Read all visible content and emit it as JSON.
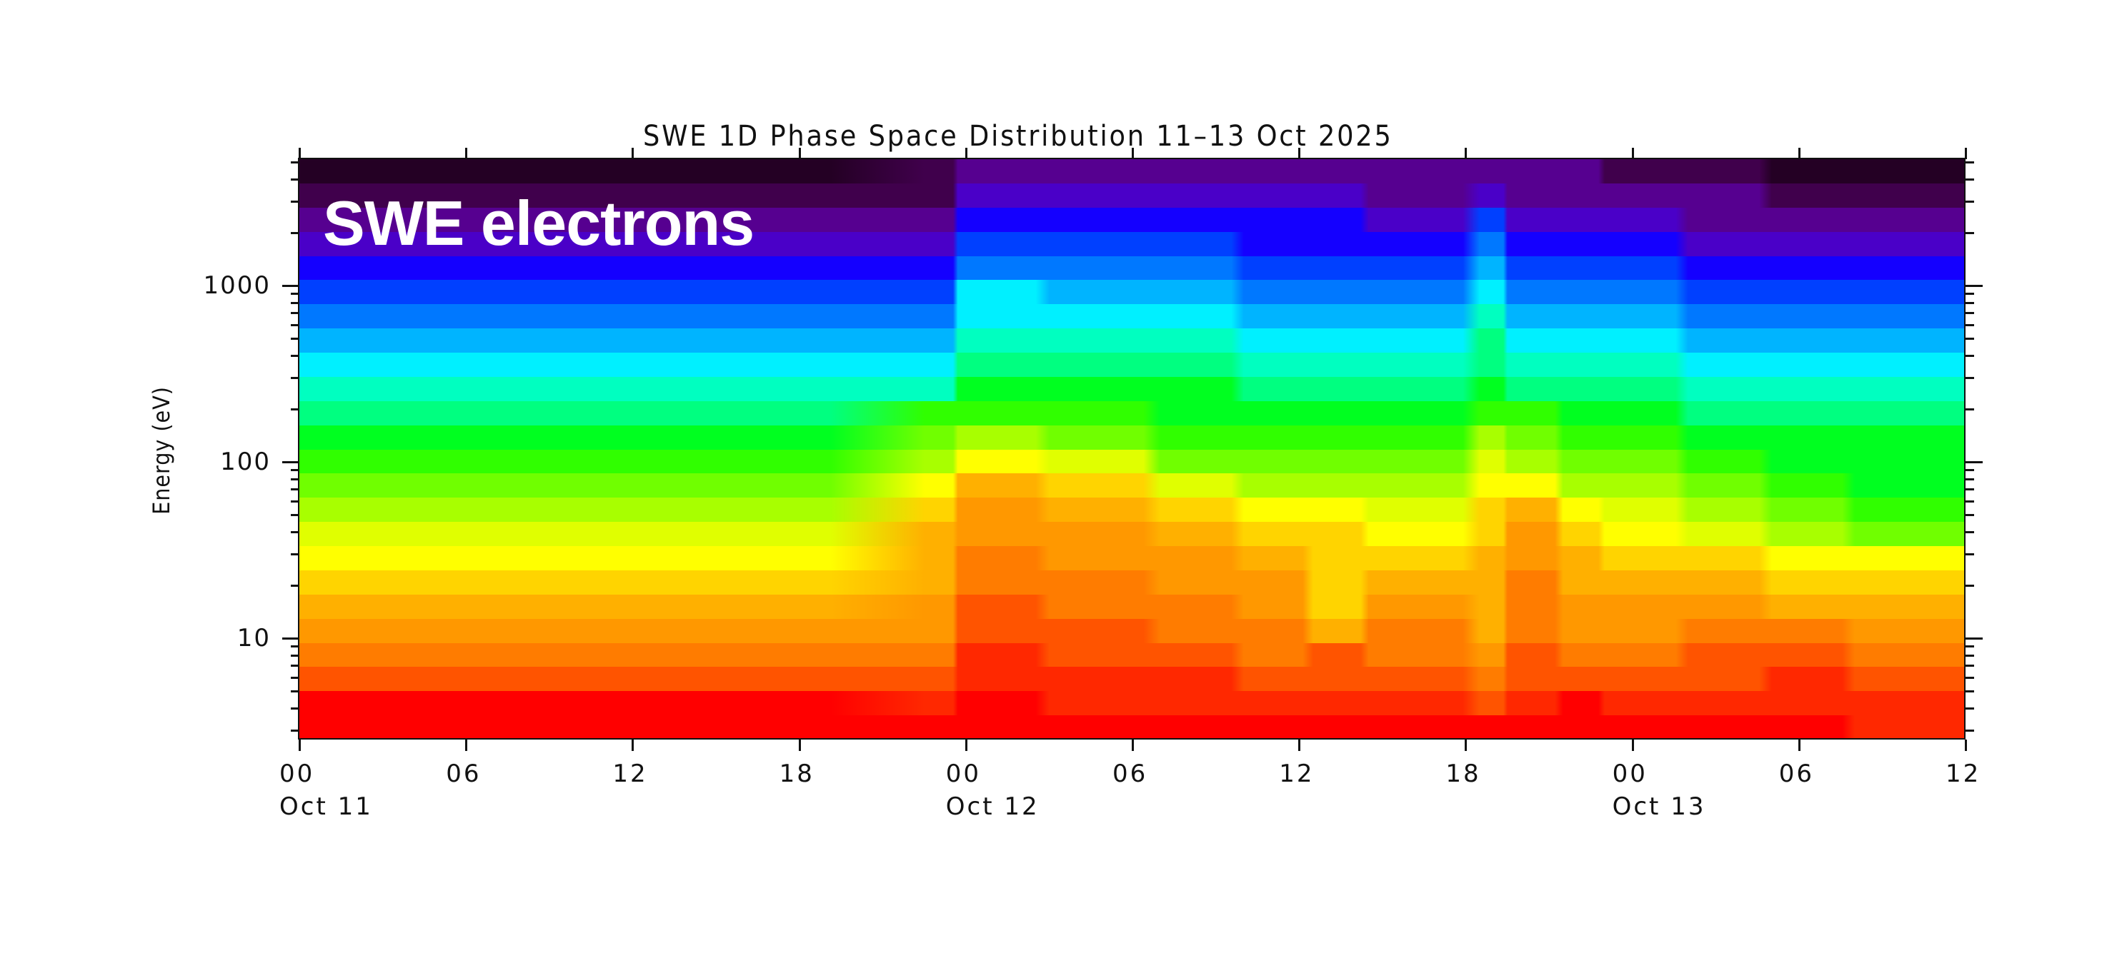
{
  "title": "SWE 1D Phase Space Distribution 11–13 Oct 2025",
  "overlay_label": "SWE electrons",
  "y_axis_title": "Energy (eV)",
  "chart_data": {
    "type": "heatmap",
    "title": "SWE 1D Phase Space Distribution 11–13 Oct 2025",
    "annotation": "SWE electrons",
    "xlabel": "",
    "ylabel": "Energy (eV)",
    "yscale": "log",
    "ylim": [
      2.9,
      5200
    ],
    "x_range_hours": [
      0,
      60
    ],
    "x_ticks": [
      {
        "h": 0,
        "label": "00",
        "date": "Oct 11"
      },
      {
        "h": 6,
        "label": "06",
        "date": ""
      },
      {
        "h": 12,
        "label": "12",
        "date": ""
      },
      {
        "h": 18,
        "label": "18",
        "date": ""
      },
      {
        "h": 24,
        "label": "00",
        "date": "Oct 12"
      },
      {
        "h": 30,
        "label": "06",
        "date": ""
      },
      {
        "h": 36,
        "label": "12",
        "date": ""
      },
      {
        "h": 42,
        "label": "18",
        "date": ""
      },
      {
        "h": 48,
        "label": "00",
        "date": "Oct 13"
      },
      {
        "h": 54,
        "label": "06",
        "date": ""
      },
      {
        "h": 60,
        "label": "12",
        "date": ""
      }
    ],
    "y_ticks": [
      {
        "value": 10,
        "label": "10"
      },
      {
        "value": 100,
        "label": "100"
      },
      {
        "value": 1000,
        "label": "1000"
      }
    ],
    "colormap": [
      "#240024",
      "#40004c",
      "#560090",
      "#4a00c8",
      "#1400ff",
      "#0040ff",
      "#0078ff",
      "#00b4ff",
      "#00f0ff",
      "#00ffc0",
      "#00ff80",
      "#00ff20",
      "#30ff00",
      "#70ff00",
      "#a8ff00",
      "#e0ff00",
      "#ffff00",
      "#ffd400",
      "#ffb000",
      "#ff9800",
      "#ff7c00",
      "#ff5400",
      "#ff2800",
      "#ff0000"
    ],
    "energy_bands_count": 24,
    "segments_hours": [
      0,
      22.5,
      23.7,
      27,
      31,
      34,
      36.5,
      38.5,
      42.5,
      43.5,
      45.5,
      47,
      50,
      53,
      56,
      60
    ],
    "levels": [
      [
        0,
        1,
        2,
        2,
        2,
        2,
        2,
        2,
        2,
        2,
        2,
        1,
        1,
        0,
        0
      ],
      [
        1,
        1,
        3,
        3,
        3,
        3,
        3,
        2,
        3,
        2,
        2,
        2,
        2,
        1,
        1
      ],
      [
        2,
        2,
        4,
        4,
        4,
        4,
        4,
        3,
        5,
        3,
        3,
        3,
        2,
        2,
        2
      ],
      [
        3,
        3,
        5,
        5,
        5,
        4,
        4,
        4,
        6,
        4,
        4,
        4,
        3,
        3,
        3
      ],
      [
        4,
        4,
        6,
        6,
        6,
        5,
        5,
        5,
        7,
        5,
        5,
        5,
        4,
        4,
        4
      ],
      [
        5,
        5,
        8,
        7,
        7,
        6,
        6,
        6,
        8,
        6,
        6,
        6,
        5,
        5,
        5
      ],
      [
        6,
        6,
        8,
        8,
        8,
        7,
        7,
        7,
        9,
        7,
        7,
        7,
        6,
        6,
        6
      ],
      [
        7,
        7,
        9,
        9,
        9,
        8,
        8,
        8,
        10,
        8,
        8,
        8,
        7,
        7,
        7
      ],
      [
        8,
        8,
        10,
        10,
        10,
        9,
        9,
        9,
        10,
        9,
        9,
        9,
        8,
        8,
        8
      ],
      [
        9,
        9,
        11,
        11,
        11,
        10,
        10,
        10,
        11,
        10,
        10,
        10,
        9,
        9,
        9
      ],
      [
        10,
        12,
        12,
        12,
        11,
        11,
        11,
        11,
        12,
        12,
        11,
        11,
        10,
        10,
        10
      ],
      [
        11,
        13,
        14,
        13,
        12,
        12,
        12,
        12,
        14,
        13,
        12,
        12,
        11,
        11,
        11
      ],
      [
        12,
        14,
        16,
        15,
        13,
        13,
        13,
        13,
        15,
        14,
        13,
        13,
        12,
        11,
        11
      ],
      [
        13,
        16,
        18,
        17,
        15,
        14,
        14,
        14,
        16,
        16,
        14,
        14,
        13,
        12,
        11
      ],
      [
        14,
        17,
        19,
        18,
        17,
        16,
        16,
        15,
        17,
        18,
        16,
        15,
        14,
        13,
        12
      ],
      [
        15,
        18,
        19,
        19,
        18,
        17,
        17,
        16,
        17,
        19,
        17,
        16,
        15,
        14,
        13
      ],
      [
        16,
        18,
        20,
        19,
        19,
        18,
        17,
        17,
        18,
        19,
        18,
        17,
        17,
        16,
        16
      ],
      [
        17,
        18,
        20,
        20,
        19,
        19,
        17,
        18,
        18,
        20,
        18,
        18,
        18,
        17,
        17
      ],
      [
        18,
        19,
        21,
        20,
        20,
        19,
        17,
        19,
        18,
        20,
        19,
        19,
        19,
        18,
        18
      ],
      [
        19,
        19,
        21,
        21,
        20,
        20,
        18,
        20,
        18,
        20,
        19,
        19,
        20,
        20,
        19
      ],
      [
        20,
        20,
        22,
        21,
        21,
        20,
        21,
        20,
        19,
        21,
        20,
        20,
        21,
        21,
        20
      ],
      [
        21,
        21,
        22,
        22,
        22,
        21,
        21,
        21,
        20,
        21,
        21,
        21,
        21,
        22,
        21
      ],
      [
        23,
        22,
        23,
        22,
        22,
        22,
        22,
        22,
        21,
        22,
        23,
        22,
        22,
        22,
        22
      ],
      [
        23,
        23,
        23,
        23,
        23,
        23,
        23,
        23,
        23,
        23,
        23,
        23,
        23,
        23,
        22
      ]
    ],
    "grid": false,
    "legend": null
  }
}
